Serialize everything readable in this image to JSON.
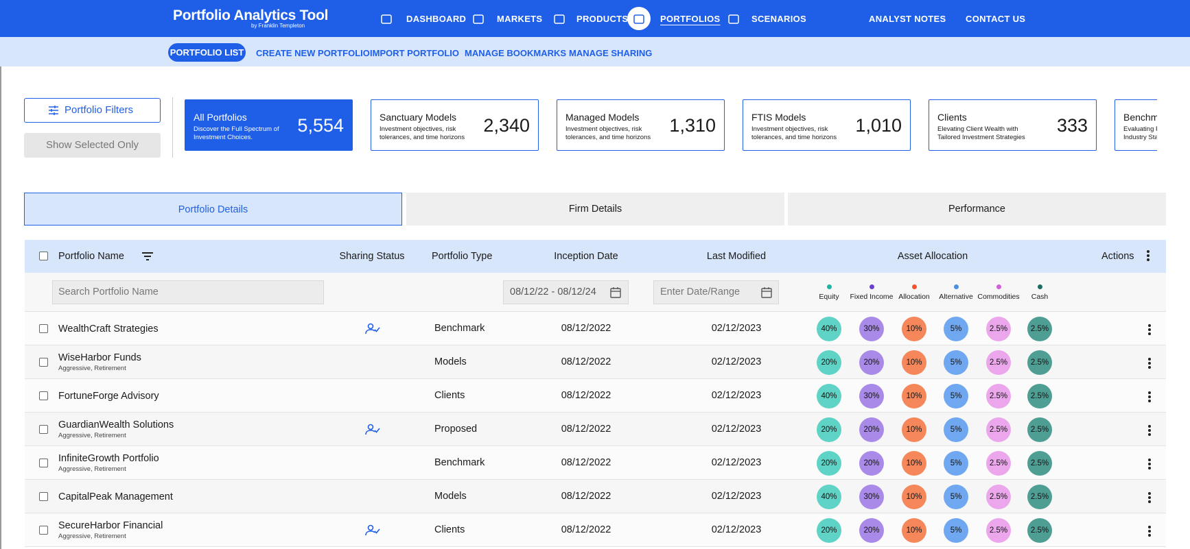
{
  "header": {
    "title": "Portfolio Analytics Tool",
    "subtitle": "by Franklin Templeton",
    "nav": [
      "DASHBOARD",
      "MARKETS",
      "PRODUCTS",
      "PORTFOLIOS",
      "SCENARIOS"
    ],
    "active_nav": 3,
    "links": [
      "ANALYST NOTES",
      "CONTACT US"
    ]
  },
  "subnav": {
    "items": [
      "PORTFOLIO LIST",
      "CREATE NEW PORTFOLIO",
      "IMPORT PORTFOLIO",
      "MANAGE BOOKMARKS",
      "MANAGE SHARING"
    ],
    "active": 0
  },
  "filters": {
    "button": "Portfolio Filters",
    "toggle": "Show Selected Only"
  },
  "cards": [
    {
      "title": "All Portfolios",
      "description": "Discover the Full Spectrum of Investment Choices.",
      "count": "5,554"
    },
    {
      "title": "Sanctuary Models",
      "description": "Investment objectives, risk tolerances, and time horizons",
      "count": "2,340"
    },
    {
      "title": "Managed Models",
      "description": "Investment objectives, risk tolerances, and time horizons",
      "count": "1,310"
    },
    {
      "title": "FTIS Models",
      "description": "Investment objectives, risk tolerances, and time horizons",
      "count": "1,010"
    },
    {
      "title": "Clients",
      "description": "Elevating Client Wealth with Tailored Investment Strategies",
      "count": "333"
    },
    {
      "title": "Benchmarks",
      "description": "Evaluating Portfolios Against Industry Standards"
    }
  ],
  "active_card": 0,
  "tabs": {
    "items": [
      "Portfolio Details",
      "Firm Details",
      "Performance"
    ],
    "active": 0
  },
  "table": {
    "columns": [
      "Portfolio Name",
      "Sharing Status",
      "Portfolio Type",
      "Inception Date",
      "Last Modified",
      "Asset Allocation",
      "Actions"
    ],
    "search_placeholder": "Search Portfolio Name",
    "inception_filter": "08/12/22 - 08/12/24",
    "modified_placeholder": "Enter Date/Range",
    "asset_classes": [
      "Equity",
      "Fixed Income",
      "Allocation",
      "Alternative",
      "Commodities",
      "Cash"
    ],
    "rows": [
      {
        "name": "WealthCraft Strategies",
        "shared": true,
        "type": "Benchmark",
        "inception": "08/12/2022",
        "modified": "02/12/2023",
        "allocation": [
          "40%",
          "30%",
          "10%",
          "5%",
          "2.5%",
          "2.5%"
        ]
      },
      {
        "name": "WiseHarbor Funds",
        "tags": "Aggressive, Retirement",
        "shared": false,
        "type": "Models",
        "inception": "08/12/2022",
        "modified": "02/12/2023",
        "allocation": [
          "20%",
          "20%",
          "10%",
          "5%",
          "2.5%",
          "2.5%"
        ]
      },
      {
        "name": "FortuneForge Advisory",
        "shared": false,
        "type": "Clients",
        "inception": "08/12/2022",
        "modified": "02/12/2023",
        "allocation": [
          "40%",
          "30%",
          "10%",
          "5%",
          "2.5%",
          "2.5%"
        ]
      },
      {
        "name": "GuardianWealth Solutions",
        "tags": "Aggressive, Retirement",
        "shared": true,
        "type": "Proposed",
        "inception": "08/12/2022",
        "modified": "02/12/2023",
        "allocation": [
          "20%",
          "20%",
          "10%",
          "5%",
          "2.5%",
          "2.5%"
        ]
      },
      {
        "name": "InfiniteGrowth Portfolio",
        "tags": "Aggressive, Retirement",
        "shared": false,
        "type": "Benchmark",
        "inception": "08/12/2022",
        "modified": "02/12/2023",
        "allocation": [
          "20%",
          "20%",
          "10%",
          "5%",
          "2.5%",
          "2.5%"
        ]
      },
      {
        "name": "CapitalPeak Management",
        "shared": false,
        "type": "Models",
        "inception": "08/12/2022",
        "modified": "02/12/2023",
        "allocation": [
          "40%",
          "30%",
          "10%",
          "5%",
          "2.5%",
          "2.5%"
        ]
      },
      {
        "name": "SecureHarbor Financial",
        "tags": "Aggressive, Retirement",
        "shared": true,
        "type": "Clients",
        "inception": "08/12/2022",
        "modified": "02/12/2023",
        "allocation": [
          "20%",
          "20%",
          "10%",
          "5%",
          "2.5%",
          "2.5%"
        ]
      }
    ]
  }
}
